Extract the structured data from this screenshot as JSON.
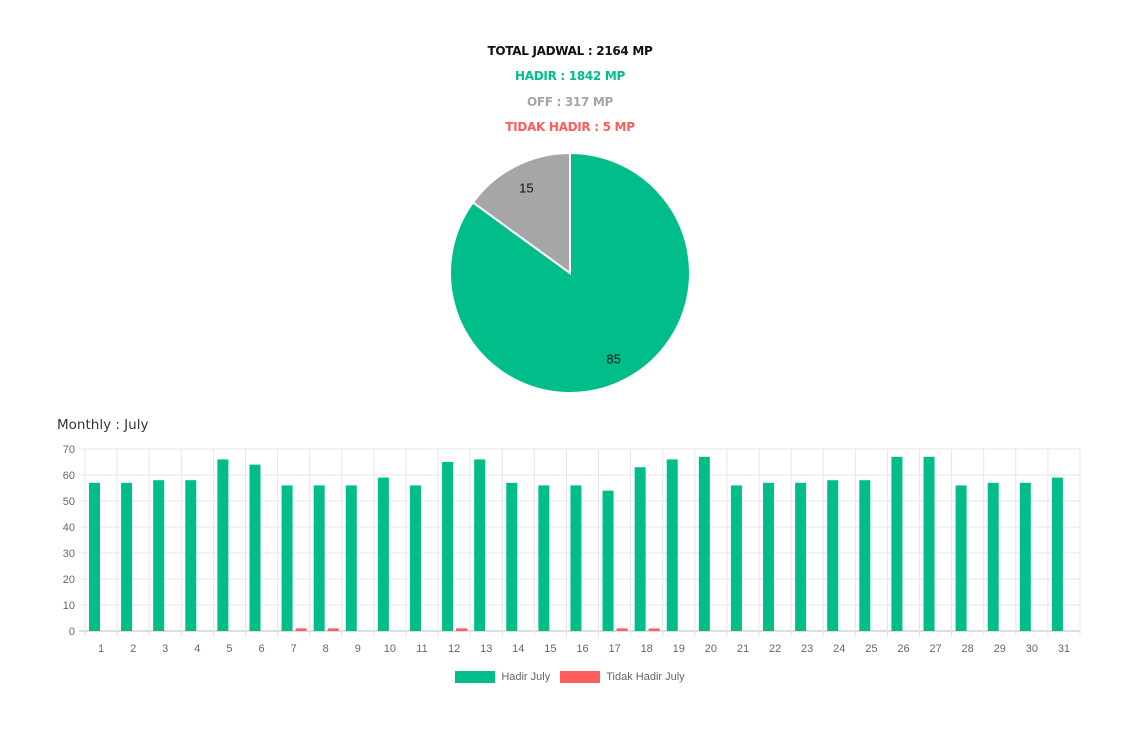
{
  "summary": {
    "total": "TOTAL JADWAL : 2164 MP",
    "hadir": "HADIR : 1842 MP",
    "off": "OFF : 317 MP",
    "tidak_hadir": "TIDAK HADIR : 5 MP"
  },
  "colors": {
    "hadir": "#00BD8A",
    "off": "#A6A6A6",
    "tidak_hadir": "#FF5C5C",
    "total": "#111111"
  },
  "monthly_title": "Monthly : July",
  "chart_data": [
    {
      "type": "pie",
      "slices": [
        {
          "label": "Hadir",
          "value": 85,
          "color": "#00BD8A"
        },
        {
          "label": "Off",
          "value": 15,
          "color": "#A6A6A6"
        }
      ]
    },
    {
      "type": "bar",
      "categories": [
        "1",
        "2",
        "3",
        "4",
        "5",
        "6",
        "7",
        "8",
        "9",
        "10",
        "11",
        "12",
        "13",
        "14",
        "15",
        "16",
        "17",
        "18",
        "19",
        "20",
        "21",
        "22",
        "23",
        "24",
        "25",
        "26",
        "27",
        "28",
        "29",
        "30",
        "31"
      ],
      "series": [
        {
          "name": "Hadir July",
          "color": "#00BD8A",
          "values": [
            57,
            57,
            58,
            58,
            66,
            64,
            56,
            56,
            56,
            59,
            56,
            65,
            66,
            57,
            56,
            56,
            54,
            63,
            66,
            67,
            56,
            57,
            57,
            58,
            58,
            67,
            67,
            56,
            57,
            57,
            59
          ]
        },
        {
          "name": "Tidak Hadir July",
          "color": "#FF5C5C",
          "values": [
            0,
            0,
            0,
            0,
            0,
            0,
            1,
            1,
            0,
            0,
            0,
            1,
            0,
            0,
            0,
            0,
            1,
            1,
            0,
            0,
            0,
            0,
            0,
            0,
            0,
            0,
            0,
            0,
            0,
            0,
            0
          ]
        }
      ],
      "ylim": [
        0,
        70
      ],
      "yticks": [
        0,
        10,
        20,
        30,
        40,
        50,
        60,
        70
      ],
      "grid": true,
      "legend": "bottom"
    }
  ]
}
